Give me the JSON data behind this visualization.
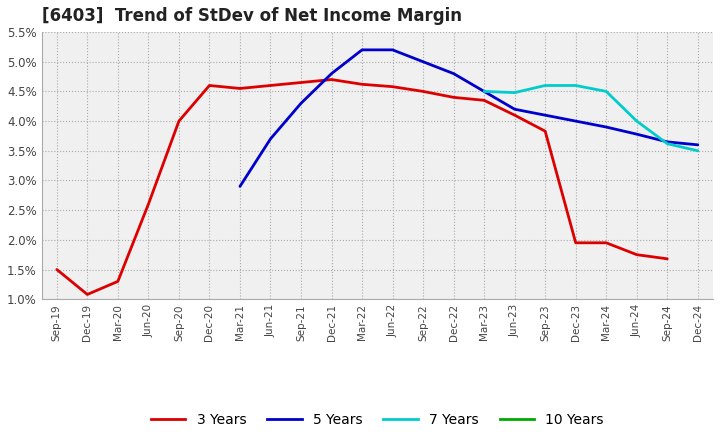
{
  "title": "[6403]  Trend of StDev of Net Income Margin",
  "background_color": "#ffffff",
  "grid_color": "#aaaaaa",
  "ylim": [
    0.01,
    0.055
  ],
  "yticks": [
    0.01,
    0.015,
    0.02,
    0.025,
    0.03,
    0.035,
    0.04,
    0.045,
    0.05,
    0.055
  ],
  "x_labels": [
    "Sep-19",
    "Dec-19",
    "Mar-20",
    "Jun-20",
    "Sep-20",
    "Dec-20",
    "Mar-21",
    "Jun-21",
    "Sep-21",
    "Dec-21",
    "Mar-22",
    "Jun-22",
    "Sep-22",
    "Dec-22",
    "Mar-23",
    "Jun-23",
    "Sep-23",
    "Dec-23",
    "Mar-24",
    "Jun-24",
    "Sep-24",
    "Dec-24"
  ],
  "series": {
    "3 Years": {
      "color": "#dd0000",
      "linewidth": 2.0,
      "values": [
        0.015,
        0.0108,
        0.013,
        0.026,
        0.04,
        0.046,
        0.0455,
        0.046,
        0.0465,
        0.047,
        0.0462,
        0.0458,
        0.045,
        0.044,
        0.0435,
        0.041,
        0.0383,
        0.0195,
        0.0195,
        0.0175,
        0.0168,
        null
      ]
    },
    "5 Years": {
      "color": "#0000cc",
      "linewidth": 2.0,
      "values": [
        null,
        null,
        null,
        null,
        null,
        null,
        0.029,
        0.037,
        0.043,
        0.048,
        0.052,
        0.052,
        0.05,
        0.048,
        0.045,
        0.042,
        0.041,
        0.04,
        0.039,
        0.0378,
        0.0365,
        0.036
      ]
    },
    "7 Years": {
      "color": "#00cccc",
      "linewidth": 2.0,
      "values": [
        null,
        null,
        null,
        null,
        null,
        null,
        null,
        null,
        null,
        null,
        null,
        null,
        null,
        null,
        0.045,
        0.0448,
        0.046,
        0.046,
        0.045,
        0.04,
        0.0362,
        0.035
      ]
    },
    "10 Years": {
      "color": "#00aa00",
      "linewidth": 2.0,
      "values": [
        null,
        null,
        null,
        null,
        null,
        null,
        null,
        null,
        null,
        null,
        null,
        null,
        null,
        null,
        null,
        null,
        null,
        null,
        null,
        null,
        null,
        null
      ]
    }
  },
  "legend_labels": [
    "3 Years",
    "5 Years",
    "7 Years",
    "10 Years"
  ]
}
